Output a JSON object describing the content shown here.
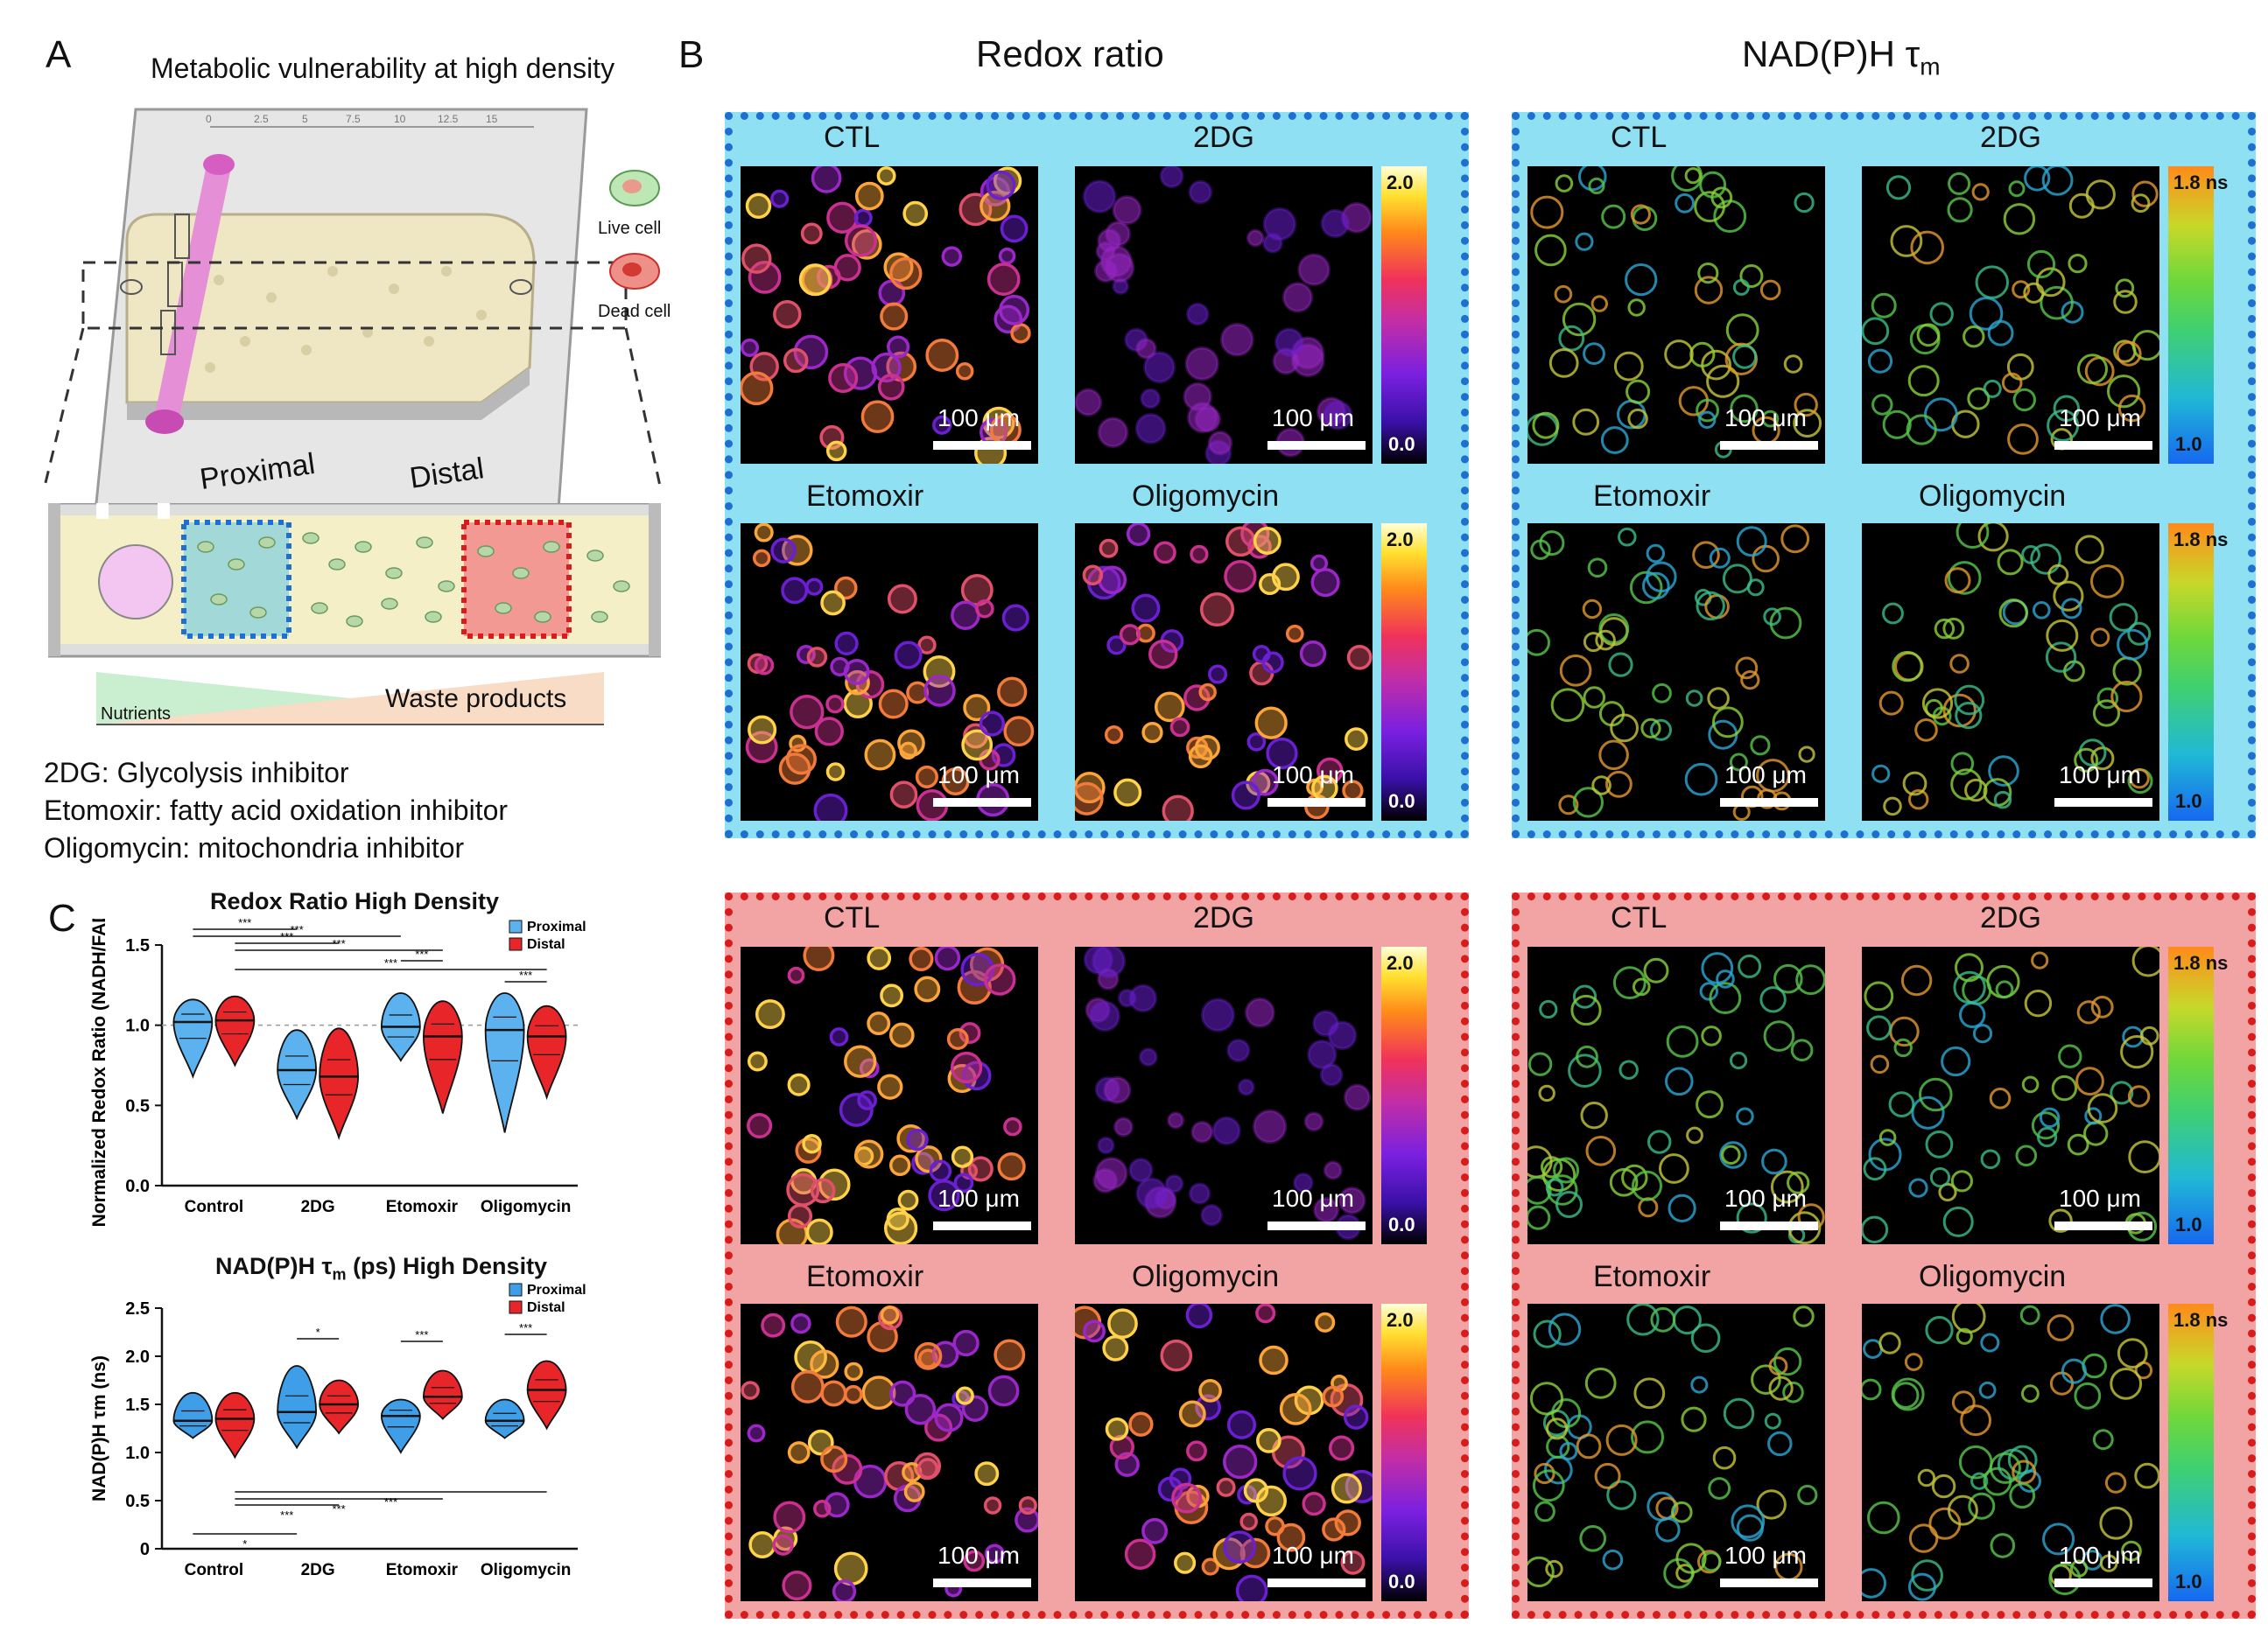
{
  "panelA": {
    "label": "A",
    "title": "Metabolic vulnerability at high density",
    "live_cell": "Live cell",
    "dead_cell": "Dead cell",
    "proximal": "Proximal",
    "distal": "Distal",
    "nutrients": "Nutrients",
    "waste": "Waste products",
    "ruler_ticks": [
      "0",
      "2.5",
      "5",
      "7.5",
      "10",
      "12.5",
      "15"
    ],
    "legend": [
      "2DG: Glycolysis inhibitor",
      "Etomoxir: fatty acid oxidation inhibitor",
      "Oligomycin: mitochondria inhibitor"
    ],
    "colors": {
      "proximal": "#3aa6e6",
      "distal": "#e02020",
      "well": "#f4efc7",
      "inlet": "#e79ad9"
    }
  },
  "panelB": {
    "label": "B",
    "col_redox": "Redox ratio",
    "col_nadh": "NAD(P)H τ",
    "col_nadh_sub": "m",
    "tiles": [
      "CTL",
      "2DG",
      "Etomoxir",
      "Oligomycin"
    ],
    "scale": "100 μm",
    "redox_max": "2.0",
    "redox_min": "0.0",
    "nadh_max": "1.8 ns",
    "nadh_min": "1.0",
    "colors": {
      "blue_box": "#8fe0f2",
      "red_box": "#f2a3a3"
    }
  },
  "panelC": {
    "label": "C",
    "chart_data": [
      {
        "type": "violin",
        "title": "Redox Ratio High Density",
        "ylabel": "Normalized Redox Ratio (NADH/FAD)",
        "ylim": [
          0,
          1.5
        ],
        "yticks": [
          "0.0",
          "0.5",
          "1.0",
          "1.5"
        ],
        "categories": [
          "Control",
          "2DG",
          "Etomoxir",
          "Oligomycin"
        ],
        "series": [
          {
            "name": "Proximal",
            "color": "#5bb2ef",
            "median": [
              1.02,
              0.72,
              0.99,
              0.97
            ],
            "min": [
              0.68,
              0.42,
              0.78,
              0.33
            ],
            "max": [
              1.16,
              0.97,
              1.2,
              1.2
            ]
          },
          {
            "name": "Distal",
            "color": "#e8262a",
            "median": [
              1.03,
              0.68,
              0.93,
              0.93
            ],
            "min": [
              0.75,
              0.3,
              0.45,
              0.55
            ],
            "max": [
              1.18,
              0.98,
              1.15,
              1.12
            ]
          }
        ],
        "sig": [
          "***",
          "***",
          "***",
          "***",
          "***",
          "***",
          "***"
        ]
      },
      {
        "type": "violin",
        "title": "NAD(P)H τm (ps) High Density",
        "ylabel": "NAD(P)H τm (ns)",
        "ylim": [
          0,
          2.5
        ],
        "yticks": [
          "0",
          "0.5",
          "1.0",
          "1.5",
          "2.0",
          "2.5"
        ],
        "categories": [
          "Control",
          "2DG",
          "Etomoxir",
          "Oligomycin"
        ],
        "series": [
          {
            "name": "Proximal",
            "color": "#3f9ee8",
            "median": [
              1.33,
              1.42,
              1.38,
              1.33
            ],
            "min": [
              1.15,
              1.05,
              1.0,
              1.15
            ],
            "max": [
              1.62,
              1.9,
              1.55,
              1.55
            ]
          },
          {
            "name": "Distal",
            "color": "#e8262a",
            "median": [
              1.35,
              1.5,
              1.58,
              1.65
            ],
            "min": [
              0.95,
              1.2,
              1.35,
              1.25
            ],
            "max": [
              1.62,
              1.75,
              1.85,
              1.95
            ]
          }
        ],
        "sig": [
          "*",
          "***",
          "***",
          "***",
          "***",
          "***",
          "*"
        ]
      }
    ]
  }
}
